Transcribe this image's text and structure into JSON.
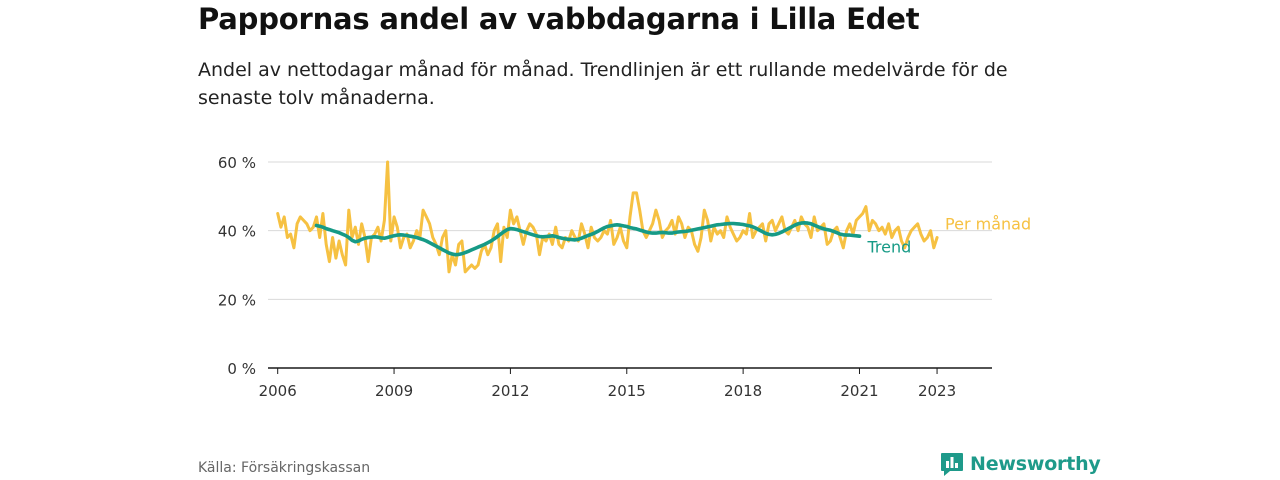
{
  "header": {
    "title": "Pappornas andel av vabbdagarna i Lilla Edet",
    "subtitle": "Andel av nettodagar månad för månad. Trendlinjen är ett rullande medelvärde för de senaste tolv månaderna."
  },
  "footer": {
    "source": "Källa: Försäkringskassan",
    "brand": "Newsworthy"
  },
  "colors": {
    "monthly": "#f6c142",
    "trend": "#169a86",
    "grid": "#d9d9d9",
    "axis": "#1a1a1a",
    "brand": "#1e9a8a"
  },
  "chart_data": {
    "type": "line",
    "title": "Pappornas andel av vabbdagarna i Lilla Edet",
    "subtitle": "Andel av nettodagar månad för månad. Trendlinjen är ett rullande medelvärde för de senaste tolv månaderna.",
    "xlabel": "",
    "ylabel": "",
    "ylim": [
      0,
      60
    ],
    "yticks": [
      0,
      20,
      40,
      60
    ],
    "ytick_labels": [
      "0 %",
      "20 %",
      "40 %",
      "60 %"
    ],
    "xlim": [
      "2005-10",
      "2024-06"
    ],
    "xticks": [
      "2006",
      "2009",
      "2012",
      "2015",
      "2018",
      "2021",
      "2023"
    ],
    "grid": true,
    "legend": "inline-right",
    "series": [
      {
        "name": "Per månad",
        "color": "#f6c142",
        "start": "2006-01",
        "interval": "month",
        "values": [
          45,
          41,
          44,
          38,
          39,
          35,
          42,
          44,
          43,
          42,
          40,
          41,
          44,
          38,
          45,
          36,
          31,
          38,
          32,
          37,
          33,
          30,
          46,
          38,
          41,
          36,
          42,
          38,
          31,
          38,
          39,
          41,
          37,
          43,
          60,
          37,
          44,
          41,
          35,
          38,
          39,
          35,
          37,
          40,
          38,
          46,
          44,
          42,
          38,
          36,
          33,
          38,
          40,
          28,
          33,
          30,
          36,
          37,
          28,
          29,
          30,
          29,
          30,
          34,
          36,
          33,
          35,
          40,
          42,
          31,
          41,
          38,
          46,
          42,
          44,
          40,
          36,
          40,
          42,
          41,
          39,
          33,
          38,
          37,
          39,
          36,
          41,
          36,
          35,
          38,
          37,
          40,
          38,
          37,
          42,
          39,
          35,
          41,
          38,
          37,
          38,
          40,
          39,
          43,
          36,
          38,
          41,
          37,
          35,
          44,
          51,
          51,
          46,
          40,
          38,
          40,
          42,
          46,
          43,
          38,
          40,
          41,
          43,
          39,
          44,
          42,
          38,
          41,
          40,
          36,
          34,
          38,
          46,
          43,
          37,
          41,
          39,
          40,
          38,
          44,
          41,
          39,
          37,
          38,
          40,
          39,
          45,
          38,
          40,
          41,
          42,
          37,
          42,
          43,
          40,
          42,
          44,
          40,
          39,
          41,
          43,
          40,
          44,
          42,
          41,
          38,
          44,
          40,
          41,
          42,
          36,
          37,
          40,
          41,
          38,
          35,
          40,
          42,
          39,
          43,
          44,
          45,
          47,
          40,
          43,
          42,
          40,
          41,
          39,
          42,
          38,
          40,
          41,
          37,
          35,
          38,
          40,
          41,
          42,
          39,
          37,
          38,
          40,
          35,
          38
        ]
      },
      {
        "name": "Trend",
        "color": "#169a86",
        "start": "2007-01",
        "interval": "month",
        "values": [
          41.5,
          41.3,
          41.0,
          40.6,
          40.3,
          40.0,
          39.7,
          39.4,
          39.0,
          38.6,
          38.0,
          37.2,
          36.8,
          37.0,
          37.5,
          37.8,
          38.0,
          38.1,
          38.2,
          38.1,
          37.9,
          37.8,
          38.0,
          38.3,
          38.5,
          38.7,
          38.8,
          38.7,
          38.6,
          38.4,
          38.2,
          38.0,
          37.7,
          37.4,
          37.0,
          36.5,
          36.0,
          35.5,
          35.0,
          34.5,
          34.0,
          33.5,
          33.2,
          33.0,
          33.1,
          33.3,
          33.6,
          34.0,
          34.4,
          34.8,
          35.2,
          35.6,
          36.0,
          36.5,
          37.0,
          37.6,
          38.3,
          39.0,
          39.7,
          40.3,
          40.6,
          40.5,
          40.3,
          40.0,
          39.7,
          39.4,
          39.1,
          38.8,
          38.5,
          38.3,
          38.2,
          38.3,
          38.4,
          38.5,
          38.3,
          38.0,
          37.8,
          37.6,
          37.5,
          37.4,
          37.3,
          37.5,
          37.8,
          38.2,
          38.6,
          38.9,
          39.3,
          39.8,
          40.3,
          40.8,
          41.2,
          41.4,
          41.6,
          41.7,
          41.6,
          41.4,
          41.2,
          40.9,
          40.7,
          40.5,
          40.2,
          39.9,
          39.6,
          39.4,
          39.3,
          39.3,
          39.4,
          39.5,
          39.4,
          39.3,
          39.3,
          39.5,
          39.6,
          39.7,
          39.8,
          39.9,
          40.1,
          40.3,
          40.5,
          40.7,
          40.9,
          41.1,
          41.3,
          41.5,
          41.7,
          41.8,
          41.9,
          42.0,
          42.1,
          42.1,
          42.0,
          41.9,
          41.8,
          41.6,
          41.4,
          41.1,
          40.7,
          40.2,
          39.7,
          39.2,
          38.9,
          38.8,
          38.9,
          39.2,
          39.6,
          40.1,
          40.6,
          41.1,
          41.6,
          42.0,
          42.2,
          42.3,
          42.2,
          42.0,
          41.6,
          41.2,
          40.8,
          40.5,
          40.3,
          40.1,
          39.8,
          39.4,
          39.0,
          38.8,
          38.7,
          38.7,
          38.6,
          38.5,
          38.4
        ]
      }
    ]
  }
}
